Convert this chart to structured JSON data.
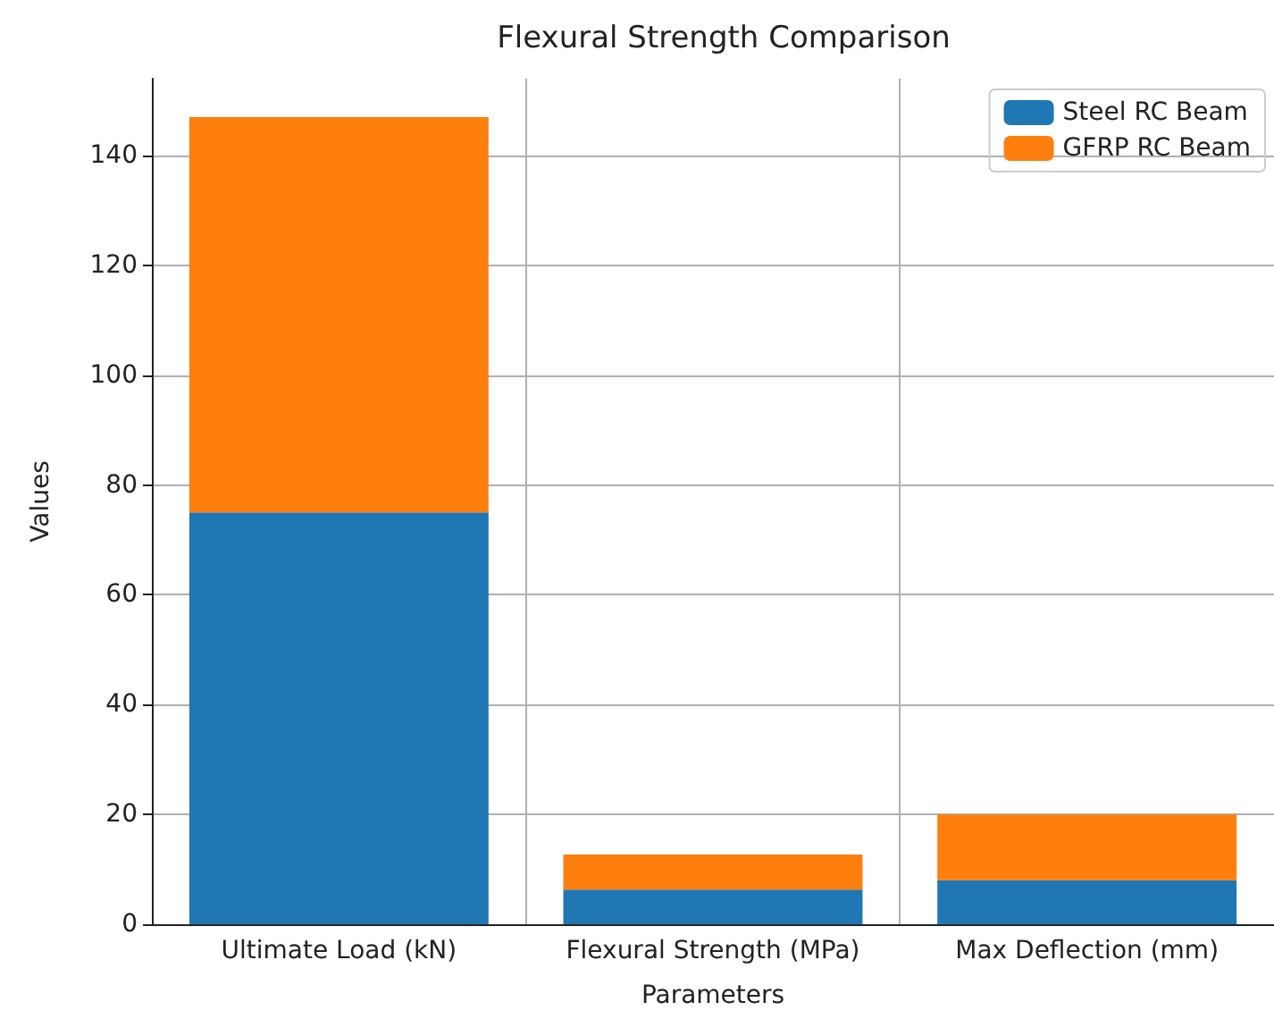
{
  "chart_data": {
    "type": "bar",
    "title": "Flexural Strength Comparison",
    "xlabel": "Parameters",
    "ylabel": "Values",
    "categories": [
      "Ultimate Load (kN)",
      "Flexural Strength (MPa)",
      "Max Deflection (mm)"
    ],
    "series": [
      {
        "name": "Steel RC Beam",
        "color": "#1f77b4",
        "values": [
          75,
          6.3,
          8
        ]
      },
      {
        "name": "GFRP RC Beam",
        "color": "#ff7f0e",
        "values": [
          72,
          6.4,
          12
        ]
      }
    ],
    "stacked": true,
    "ylim": [
      0,
      154
    ],
    "yticks": [
      0,
      20,
      40,
      60,
      80,
      100,
      120,
      140
    ],
    "grid": true,
    "legend": "top right"
  }
}
